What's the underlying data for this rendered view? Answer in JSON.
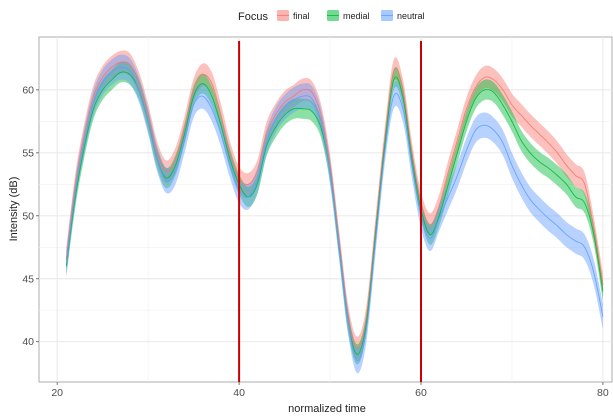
{
  "chart_data": {
    "type": "line",
    "xlabel": "normalized time",
    "ylabel": "Intensity (dB)",
    "xlim": [
      18,
      81
    ],
    "ylim": [
      36.8,
      64.2
    ],
    "x_ticks": [
      20,
      40,
      60,
      80
    ],
    "y_ticks": [
      40,
      45,
      50,
      55,
      60
    ],
    "grid": true,
    "legend": {
      "title": "Focus",
      "position": "top"
    },
    "vertical_lines": {
      "x": [
        40,
        60
      ],
      "color": "#cc0000"
    },
    "series": [
      {
        "name": "final",
        "color": "#f8766d",
        "x": [
          21,
          22,
          23,
          24,
          25,
          26,
          27,
          28,
          29,
          30,
          31,
          32,
          33,
          34,
          35,
          36,
          37,
          38,
          39,
          40,
          41,
          42,
          43,
          44,
          45,
          46,
          47,
          48,
          49,
          50,
          51,
          52,
          53,
          54,
          55,
          56,
          57,
          58,
          59,
          60,
          61,
          62,
          63,
          64,
          65,
          66,
          67,
          68,
          69,
          70,
          71,
          72,
          73,
          74,
          75,
          76,
          77,
          78,
          79,
          80
        ],
        "y": [
          46.5,
          52.5,
          56.5,
          59.5,
          61,
          61.8,
          62.2,
          62,
          60.5,
          58,
          55,
          53.5,
          54.5,
          57,
          60,
          61.2,
          60.5,
          58,
          55,
          53,
          52.5,
          53.5,
          56.5,
          58,
          59,
          59.5,
          60,
          59.8,
          58,
          54,
          48,
          42,
          39.5,
          42,
          49,
          56,
          61.5,
          60,
          55,
          51,
          49.3,
          50.8,
          53.5,
          56,
          58.5,
          60.2,
          61,
          60.8,
          60,
          58.8,
          58,
          57.2,
          56.5,
          55.8,
          55,
          54,
          53.2,
          52.5,
          49,
          44.5
        ],
        "band": 0.9
      },
      {
        "name": "medial",
        "color": "#00ba38",
        "x": [
          21,
          22,
          23,
          24,
          25,
          26,
          27,
          28,
          29,
          30,
          31,
          32,
          33,
          34,
          35,
          36,
          37,
          38,
          39,
          40,
          41,
          42,
          43,
          44,
          45,
          46,
          47,
          48,
          49,
          50,
          51,
          52,
          53,
          54,
          55,
          56,
          57,
          58,
          59,
          60,
          61,
          62,
          63,
          64,
          65,
          66,
          67,
          68,
          69,
          70,
          71,
          72,
          73,
          74,
          75,
          76,
          77,
          78,
          79,
          80
        ],
        "y": [
          46,
          51.5,
          55.5,
          58.5,
          60,
          60.8,
          61.4,
          61.2,
          60,
          57.5,
          54.5,
          53,
          54,
          56.5,
          59.5,
          60.5,
          59.5,
          57.2,
          54.5,
          52.5,
          51.5,
          52.5,
          55.5,
          57,
          58,
          58.5,
          58.5,
          58.3,
          57,
          53.5,
          47.5,
          41.5,
          39,
          41.5,
          48.5,
          55.5,
          60.8,
          59.5,
          54.5,
          50.5,
          48.5,
          50,
          52.5,
          55,
          57.5,
          59.3,
          60,
          59.8,
          58.8,
          57.5,
          56,
          55,
          54.3,
          53.8,
          53.2,
          52.5,
          51.5,
          51,
          48.5,
          44
        ],
        "band": 0.8
      },
      {
        "name": "neutral",
        "color": "#619cff",
        "x": [
          21,
          22,
          23,
          24,
          25,
          26,
          27,
          28,
          29,
          30,
          31,
          32,
          33,
          34,
          35,
          36,
          37,
          38,
          39,
          40,
          41,
          42,
          43,
          44,
          45,
          46,
          47,
          48,
          49,
          50,
          51,
          52,
          53,
          54,
          55,
          56,
          57,
          58,
          59,
          60,
          61,
          62,
          63,
          64,
          65,
          66,
          67,
          68,
          69,
          70,
          71,
          72,
          73,
          74,
          75,
          76,
          77,
          78,
          79,
          80
        ],
        "y": [
          46.2,
          52,
          56,
          59,
          60.6,
          61.4,
          61.8,
          61.5,
          60,
          57.5,
          54.5,
          52.8,
          53.5,
          56,
          58.8,
          59.5,
          58.5,
          56.5,
          54,
          52,
          51.5,
          52.8,
          55.8,
          57.6,
          58.6,
          59.2,
          59.5,
          59.3,
          57.5,
          53.5,
          47.5,
          41.5,
          38.5,
          41,
          48,
          55,
          59.5,
          58.5,
          54,
          50,
          48.2,
          49.8,
          51.5,
          53.2,
          55.2,
          56.8,
          57.2,
          56.8,
          55.8,
          54,
          52.5,
          51.3,
          50.5,
          49.8,
          49.2,
          48.5,
          48,
          47.5,
          45.5,
          42
        ],
        "band": 1.0
      }
    ]
  }
}
